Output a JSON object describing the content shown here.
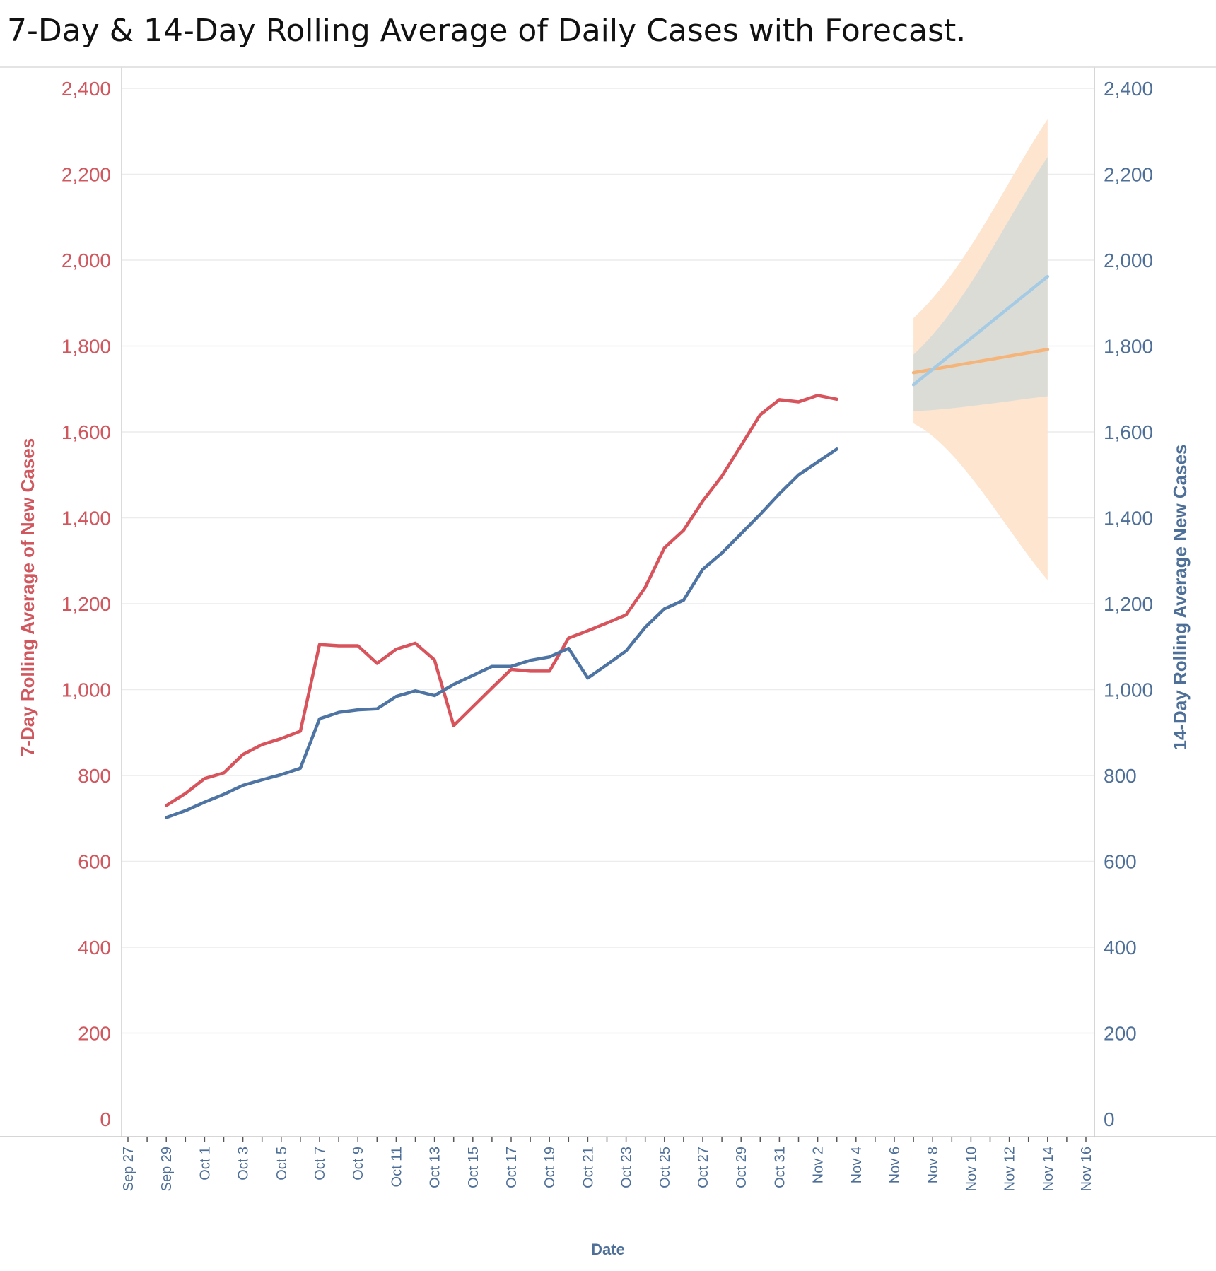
{
  "title": "7-Day & 14-Day Rolling Average of  Daily  Cases with Forecast.",
  "chart_data": {
    "type": "line",
    "xlabel": "Date",
    "ylabel_left": "7-Day Rolling  Average of New Cases",
    "ylabel_right": "14-Day Rolling Average New Cases",
    "x_range": [
      "Sep 27",
      "Nov 16"
    ],
    "x_ticks": [
      "Sep 27",
      "Sep 29",
      "Oct 1",
      "Oct 3",
      "Oct 5",
      "Oct 7",
      "Oct 9",
      "Oct 11",
      "Oct 13",
      "Oct 15",
      "Oct 17",
      "Oct 19",
      "Oct 21",
      "Oct 23",
      "Oct 25",
      "Oct 27",
      "Oct 29",
      "Oct 31",
      "Nov 2",
      "Nov 4",
      "Nov 6",
      "Nov 8",
      "Nov 10",
      "Nov 12",
      "Nov 14",
      "Nov 16"
    ],
    "ylim_left": [
      0,
      2400
    ],
    "ylim_right": [
      0,
      2400
    ],
    "y_ticks": [
      0,
      200,
      400,
      600,
      800,
      1000,
      1200,
      1400,
      1600,
      1800,
      2000,
      2200,
      2400
    ],
    "grid": true,
    "colors": {
      "seven_day": "#d8545c",
      "fourteen_day": "#4e74a3",
      "seven_day_forecast": "#f5b57a",
      "fourteen_day_forecast": "#a5cbe4",
      "seven_day_band": "#fde5d0",
      "fourteen_day_band": "#d6dbd8",
      "left_axis": "#d0575e",
      "right_axis": "#4e6f98"
    },
    "series": [
      {
        "id": "seven_day",
        "axis": "left",
        "x": [
          "Sep 29",
          "Sep 30",
          "Oct 1",
          "Oct 2",
          "Oct 3",
          "Oct 4",
          "Oct 5",
          "Oct 6",
          "Oct 7",
          "Oct 8",
          "Oct 9",
          "Oct 10",
          "Oct 11",
          "Oct 12",
          "Oct 13",
          "Oct 14",
          "Oct 15",
          "Oct 16",
          "Oct 17",
          "Oct 18",
          "Oct 19",
          "Oct 20",
          "Oct 21",
          "Oct 22",
          "Oct 23",
          "Oct 24",
          "Oct 25",
          "Oct 26",
          "Oct 27",
          "Oct 28",
          "Oct 29",
          "Oct 30",
          "Oct 31",
          "Nov 1",
          "Nov 2",
          "Nov 3"
        ],
        "values": [
          730,
          758,
          793,
          806,
          849,
          872,
          886,
          903,
          1105,
          1102,
          1102,
          1061,
          1094,
          1108,
          1069,
          916,
          960,
          1004,
          1047,
          1043,
          1043,
          1120,
          1137,
          1155,
          1174,
          1238,
          1330,
          1371,
          1439,
          1497,
          1568,
          1640,
          1675,
          1670,
          1685,
          1676
        ]
      },
      {
        "id": "fourteen_day",
        "axis": "right",
        "x": [
          "Sep 29",
          "Sep 30",
          "Oct 1",
          "Oct 2",
          "Oct 3",
          "Oct 4",
          "Oct 5",
          "Oct 6",
          "Oct 7",
          "Oct 8",
          "Oct 9",
          "Oct 10",
          "Oct 11",
          "Oct 12",
          "Oct 13",
          "Oct 14",
          "Oct 15",
          "Oct 16",
          "Oct 17",
          "Oct 18",
          "Oct 19",
          "Oct 20",
          "Oct 21",
          "Oct 22",
          "Oct 23",
          "Oct 24",
          "Oct 25",
          "Oct 26",
          "Oct 27",
          "Oct 28",
          "Oct 29",
          "Oct 30",
          "Oct 31",
          "Nov 1",
          "Nov 2",
          "Nov 3"
        ],
        "values": [
          702,
          718,
          738,
          756,
          777,
          790,
          802,
          817,
          932,
          947,
          953,
          955,
          984,
          997,
          986,
          1012,
          1033,
          1054,
          1054,
          1068,
          1076,
          1096,
          1027,
          1058,
          1090,
          1145,
          1188,
          1208,
          1280,
          1318,
          1363,
          1408,
          1456,
          1500,
          1530,
          1560
        ]
      },
      {
        "id": "seven_day_forecast",
        "axis": "left",
        "x": [
          "Nov 7",
          "Nov 14"
        ],
        "values": [
          1738,
          1792
        ],
        "upper": [
          1865,
          2328
        ],
        "lower": [
          1620,
          1255
        ]
      },
      {
        "id": "fourteen_day_forecast",
        "axis": "right",
        "x": [
          "Nov 7",
          "Nov 14"
        ],
        "values": [
          1710,
          1962
        ],
        "upper": [
          1780,
          2240
        ],
        "lower": [
          1648,
          1683
        ]
      }
    ]
  }
}
